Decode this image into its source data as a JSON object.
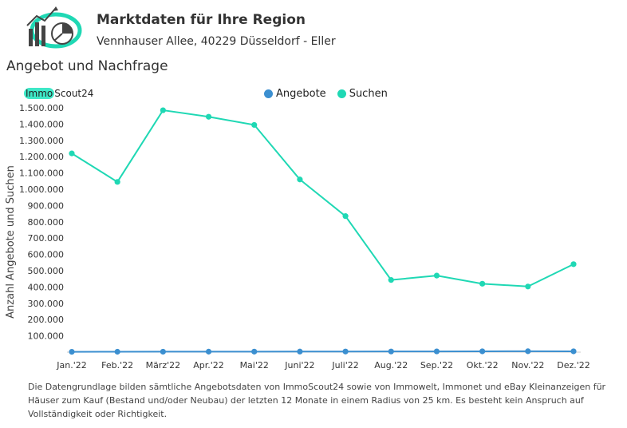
{
  "header": {
    "title": "Marktdaten für Ihre Region",
    "address": "Vennhauser Allee, 40229 Düsseldorf - Eller"
  },
  "section_title": "Angebot und Nachfrage",
  "brand": {
    "part1": "Immo",
    "part2": "Scout24"
  },
  "colors": {
    "angebote": "#3b8fd0",
    "suchen": "#1fd8b4",
    "brand_highlight": "#3ee8c7"
  },
  "chart_data": {
    "type": "line",
    "categories": [
      "Jan.'22",
      "Feb.'22",
      "März'22",
      "Apr.'22",
      "Mai'22",
      "Juni'22",
      "Juli'22",
      "Aug.'22",
      "Sep.'22",
      "Okt.'22",
      "Nov.'22",
      "Dez.'22"
    ],
    "series": [
      {
        "name": "Angebote",
        "values": [
          2000,
          2500,
          2800,
          3000,
          3200,
          3500,
          3800,
          4000,
          4500,
          5000,
          5500,
          5000
        ]
      },
      {
        "name": "Suchen",
        "values": [
          1220000,
          1045000,
          1485000,
          1445000,
          1395000,
          1060000,
          835000,
          443000,
          470000,
          420000,
          403000,
          540000
        ]
      }
    ],
    "ylabel": "Anzahl Angebote und Suchen",
    "yticks": [
      100000,
      200000,
      300000,
      400000,
      500000,
      600000,
      700000,
      800000,
      900000,
      1000000,
      1100000,
      1200000,
      1300000,
      1400000,
      1500000
    ],
    "ytick_labels": [
      "100.000",
      "200.000",
      "300.000",
      "400.000",
      "500.000",
      "600.000",
      "700.000",
      "800.000",
      "900.000",
      "1.000.000",
      "1.100.000",
      "1.200.000",
      "1.300.000",
      "1.400.000",
      "1.500.000"
    ],
    "ylim": [
      0,
      1500000
    ],
    "legend_position": "top-center",
    "grid": false
  },
  "footnote": "Die Datengrundlage bilden sämtliche Angebotsdaten von ImmoScout24 sowie von Immowelt, Immonet und eBay Kleinanzeigen für Häuser zum Kauf (Bestand und/oder Neubau) der letzten 12 Monate in einem Radius von 25 km. Es besteht kein Anspruch auf Vollständigkeit oder Richtigkeit."
}
